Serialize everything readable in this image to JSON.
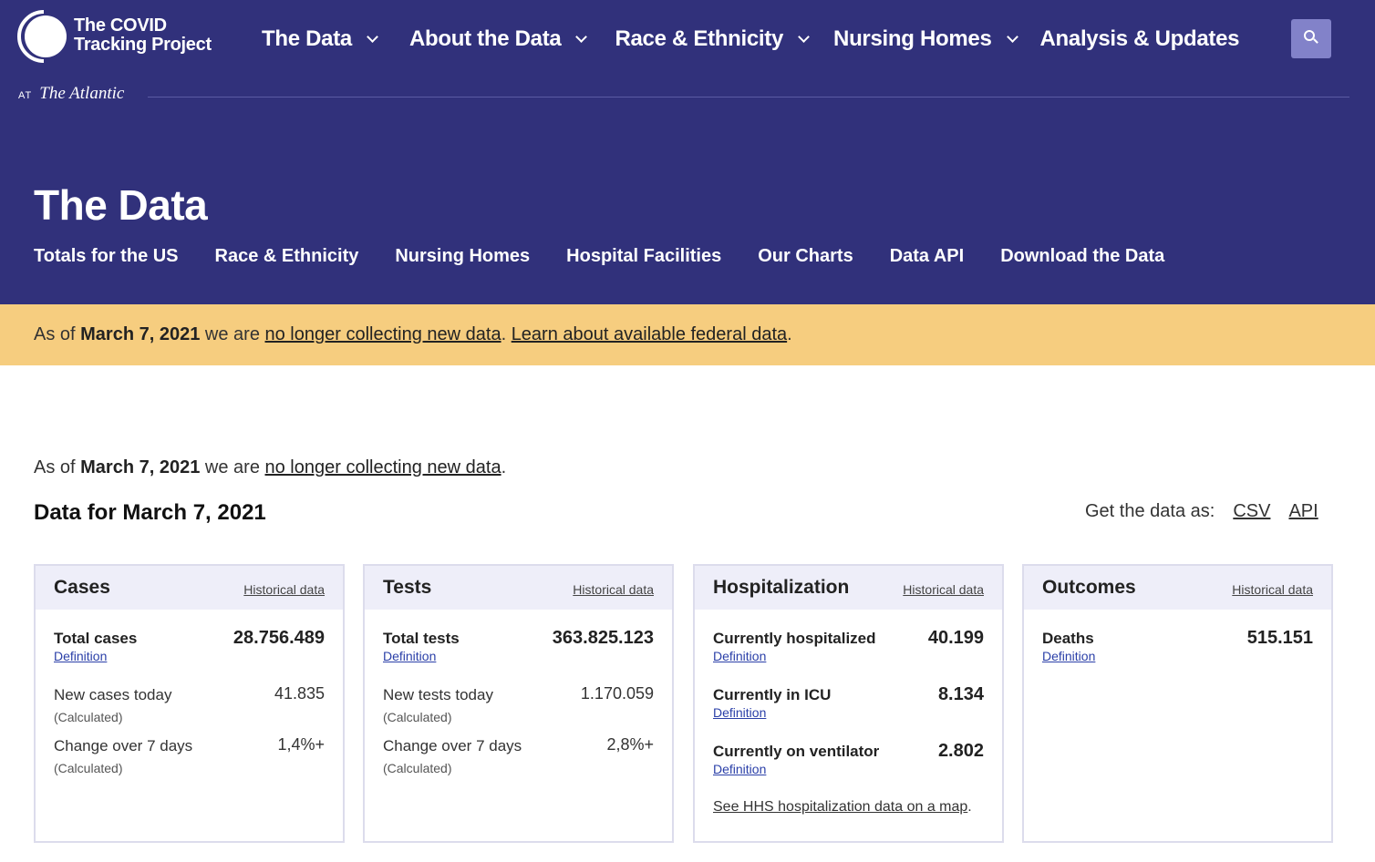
{
  "brand": {
    "name": "The COVID\nTracking Project",
    "at": "AT",
    "publication": "The Atlantic"
  },
  "topnav": [
    {
      "label": "The Data",
      "has_dropdown": true
    },
    {
      "label": "About the Data",
      "has_dropdown": true
    },
    {
      "label": "Race & Ethnicity",
      "has_dropdown": true
    },
    {
      "label": "Nursing Homes",
      "has_dropdown": true
    },
    {
      "label": "Analysis & Updates",
      "has_dropdown": false
    }
  ],
  "search": {
    "icon": "search-icon"
  },
  "page": {
    "title": "The Data"
  },
  "subnav": [
    "Totals for the US",
    "Race & Ethnicity",
    "Nursing Homes",
    "Hospital Facilities",
    "Our Charts",
    "Data API",
    "Download the Data"
  ],
  "banner": {
    "prefix": "As of",
    "date": "March 7, 2021",
    "middle": "we are",
    "link1": "no longer collecting new data",
    "sep": ".",
    "link2": "Learn about available federal data",
    "end": "."
  },
  "notice": {
    "prefix": "As of",
    "date": "March 7, 2021",
    "middle": "we are",
    "link": "no longer collecting new data",
    "end": "."
  },
  "data_heading": "Data for March 7, 2021",
  "get_data": {
    "label": "Get the data as:",
    "csv": "CSV",
    "api": "API"
  },
  "cards": {
    "cases": {
      "title": "Cases",
      "historical": "Historical data",
      "total": {
        "label": "Total cases",
        "value": "28.756.489",
        "definition": "Definition"
      },
      "new": {
        "label": "New cases today",
        "value": "41.835",
        "note": "(Calculated)"
      },
      "change": {
        "label": "Change over 7 days",
        "value": "1,4%+",
        "note": "(Calculated)"
      }
    },
    "tests": {
      "title": "Tests",
      "historical": "Historical data",
      "total": {
        "label": "Total tests",
        "value": "363.825.123",
        "definition": "Definition"
      },
      "new": {
        "label": "New tests today",
        "value": "1.170.059",
        "note": "(Calculated)"
      },
      "change": {
        "label": "Change over 7 days",
        "value": "2,8%+",
        "note": "(Calculated)"
      }
    },
    "hospitalization": {
      "title": "Hospitalization",
      "historical": "Historical data",
      "hospitalized": {
        "label": "Currently hospitalized",
        "value": "40.199",
        "definition": "Definition"
      },
      "icu": {
        "label": "Currently in ICU",
        "value": "8.134",
        "definition": "Definition"
      },
      "ventilator": {
        "label": "Currently on ventilator",
        "value": "2.802",
        "definition": "Definition"
      },
      "hhs_link": "See HHS hospitalization data on a map",
      "hhs_end": "."
    },
    "outcomes": {
      "title": "Outcomes",
      "historical": "Historical data",
      "deaths": {
        "label": "Deaths",
        "value": "515.151",
        "definition": "Definition"
      }
    }
  }
}
